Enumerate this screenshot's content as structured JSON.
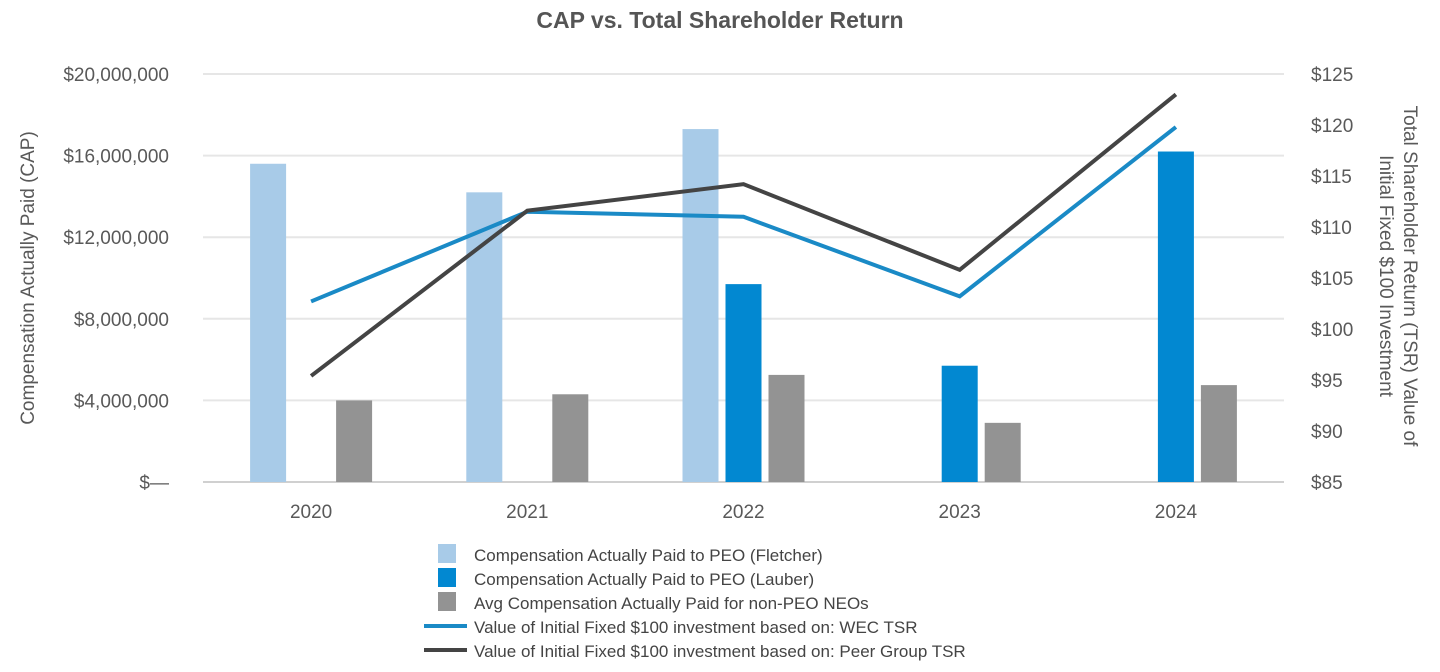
{
  "chart_data": {
    "type": "bar",
    "title": "CAP vs. Total Shareholder Return",
    "categories": [
      "2020",
      "2021",
      "2022",
      "2023",
      "2024"
    ],
    "ylabel": "Compensation Actually Paid (CAP)",
    "ylabel_right_line1": "Total Shareholder Return (TSR) Value of",
    "ylabel_right_line2": "Initial Fixed $100 Investment",
    "ylim": [
      0,
      20000000
    ],
    "ylim_right": [
      85,
      125
    ],
    "y_ticks": [
      {
        "value": 0,
        "label": "$—"
      },
      {
        "value": 4000000,
        "label": "$4,000,000"
      },
      {
        "value": 8000000,
        "label": "$8,000,000"
      },
      {
        "value": 12000000,
        "label": "$12,000,000"
      },
      {
        "value": 16000000,
        "label": "$16,000,000"
      },
      {
        "value": 20000000,
        "label": "$20,000,000"
      }
    ],
    "y_right_ticks": [
      {
        "value": 85,
        "label": "$85"
      },
      {
        "value": 90,
        "label": "$90"
      },
      {
        "value": 95,
        "label": "$95"
      },
      {
        "value": 100,
        "label": "$100"
      },
      {
        "value": 105,
        "label": "$105"
      },
      {
        "value": 110,
        "label": "$110"
      },
      {
        "value": 115,
        "label": "$115"
      },
      {
        "value": 120,
        "label": "$120"
      },
      {
        "value": 125,
        "label": "$125"
      }
    ],
    "grid": true,
    "legend_position": "bottom",
    "bar_series": [
      {
        "name": "Compensation Actually Paid to PEO (Fletcher)",
        "color": "#a8cbe8",
        "values": [
          15600000,
          14200000,
          17300000,
          null,
          null
        ]
      },
      {
        "name": "Compensation Actually Paid to PEO (Lauber)",
        "color": "#0288d1",
        "values": [
          null,
          null,
          9700000,
          5700000,
          16200000
        ]
      },
      {
        "name": "Avg Compensation Actually Paid for non-PEO NEOs",
        "color": "#939393",
        "values": [
          4000000,
          4300000,
          5250000,
          2900000,
          4750000
        ]
      }
    ],
    "line_series": [
      {
        "name": "Value of Initial Fixed $100 investment based on: WEC TSR",
        "color": "#1a8ac6",
        "axis": "right",
        "values": [
          102.7,
          111.5,
          111,
          103.2,
          119.8
        ]
      },
      {
        "name": "Value of Initial Fixed $100 investment based on: Peer Group TSR",
        "color": "#444444",
        "axis": "right",
        "values": [
          95.4,
          111.6,
          114.2,
          105.8,
          123
        ]
      }
    ]
  }
}
